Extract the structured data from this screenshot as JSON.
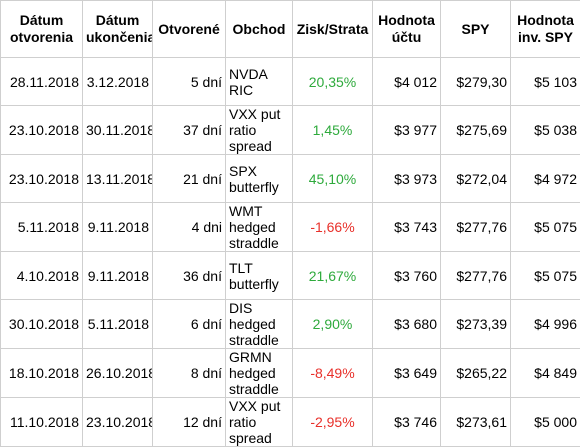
{
  "table": {
    "header": [
      [
        "Dátum",
        "otvorenia"
      ],
      [
        "Dátum",
        "ukončenia"
      ],
      [
        "Otvorené"
      ],
      [
        "Obchod"
      ],
      [
        "Zisk/Strata"
      ],
      [
        "Hodnota",
        "účtu"
      ],
      [
        "SPY"
      ],
      [
        "Hodnota",
        "inv. SPY"
      ]
    ],
    "rows": [
      [
        "28.11.2018",
        "3.12.2018",
        "5 dní",
        [
          "NVDA",
          "RIC"
        ],
        "20,35%",
        "$4 012",
        "$279,30",
        "$5 103"
      ],
      [
        "23.10.2018",
        "30.11.2018",
        "37 dní",
        [
          "VXX put",
          "ratio",
          "spread"
        ],
        "1,45%",
        "$3 977",
        "$275,69",
        "$5 038"
      ],
      [
        "23.10.2018",
        "13.11.2018",
        "21 dní",
        [
          "SPX",
          "butterfly"
        ],
        "45,10%",
        "$3 973",
        "$272,04",
        "$4 972"
      ],
      [
        "5.11.2018",
        "9.11.2018",
        "4 dni",
        [
          "WMT",
          "hedged",
          "straddle"
        ],
        "-1,66%",
        "$3 743",
        "$277,76",
        "$5 075"
      ],
      [
        "4.10.2018",
        "9.11.2018",
        "36 dní",
        [
          "TLT",
          "butterfly"
        ],
        "21,67%",
        "$3 760",
        "$277,76",
        "$5 075"
      ],
      [
        "30.10.2018",
        "5.11.2018",
        "6 dní",
        [
          "DIS",
          "hedged",
          "straddle"
        ],
        "2,90%",
        "$3 680",
        "$273,39",
        "$4 996"
      ],
      [
        "18.10.2018",
        "26.10.2018",
        "8 dní",
        [
          "GRMN",
          "hedged",
          "straddle"
        ],
        "-8,49%",
        "$3 649",
        "$265,22",
        "$4 849"
      ],
      [
        "11.10.2018",
        "23.10.2018",
        "12 dní",
        [
          "VXX put",
          "ratio",
          "spread"
        ],
        "-2,95%",
        "$3 746",
        "$273,61",
        "$5 000"
      ]
    ],
    "gain_color": "#2eaa3c",
    "loss_color": "#e8302a"
  }
}
